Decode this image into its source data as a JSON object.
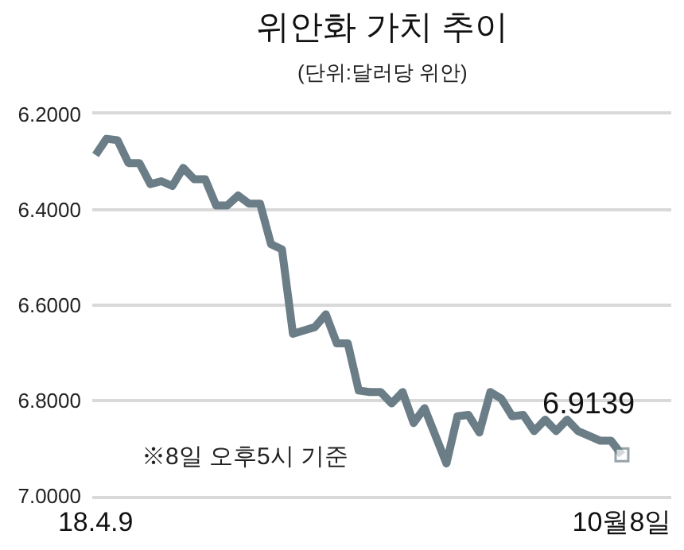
{
  "chart_data": {
    "type": "line",
    "title": "위안화 가치 추이",
    "subtitle": "(단위:달러당 위안)",
    "categories": [
      "18.4.9",
      null,
      null,
      null,
      null,
      null,
      null,
      null,
      null,
      null,
      null,
      null,
      null,
      null,
      null,
      null,
      null,
      null,
      null,
      null,
      null,
      null,
      null,
      null,
      null,
      null,
      null,
      null,
      null,
      null,
      null,
      null,
      null,
      null,
      null,
      null,
      null,
      null,
      null,
      null,
      null,
      null,
      null,
      null,
      null,
      null,
      null,
      null,
      "10월8일"
    ],
    "series": [
      {
        "color": "#6b7d87",
        "values": [
          6.285,
          6.251,
          6.254,
          6.302,
          6.302,
          6.346,
          6.34,
          6.35,
          6.312,
          6.336,
          6.336,
          6.391,
          6.391,
          6.37,
          6.387,
          6.387,
          6.472,
          6.483,
          6.66,
          6.653,
          6.646,
          6.619,
          6.68,
          6.68,
          6.779,
          6.782,
          6.782,
          6.806,
          6.782,
          6.847,
          6.816,
          6.874,
          6.932,
          6.833,
          6.83,
          6.867,
          6.782,
          6.796,
          6.833,
          6.83,
          6.864,
          6.84,
          6.864,
          6.84,
          6.864,
          6.874,
          6.884,
          6.884,
          6.9139
        ]
      }
    ],
    "ylim": [
      7.0,
      6.2
    ],
    "yticks": [
      {
        "value": 6.2,
        "label": "6.2000"
      },
      {
        "value": 6.4,
        "label": "6.4000"
      },
      {
        "value": 6.6,
        "label": "6.6000"
      },
      {
        "value": 6.8,
        "label": "6.8000"
      },
      {
        "value": 7.0,
        "label": "7.0000"
      }
    ],
    "grid": "y",
    "legend": false,
    "line_style": "solid",
    "annotations": [
      {
        "text": "6.9139",
        "x": "10월8일",
        "y": 6.9139
      },
      "※8일 오후5시 기준"
    ]
  }
}
